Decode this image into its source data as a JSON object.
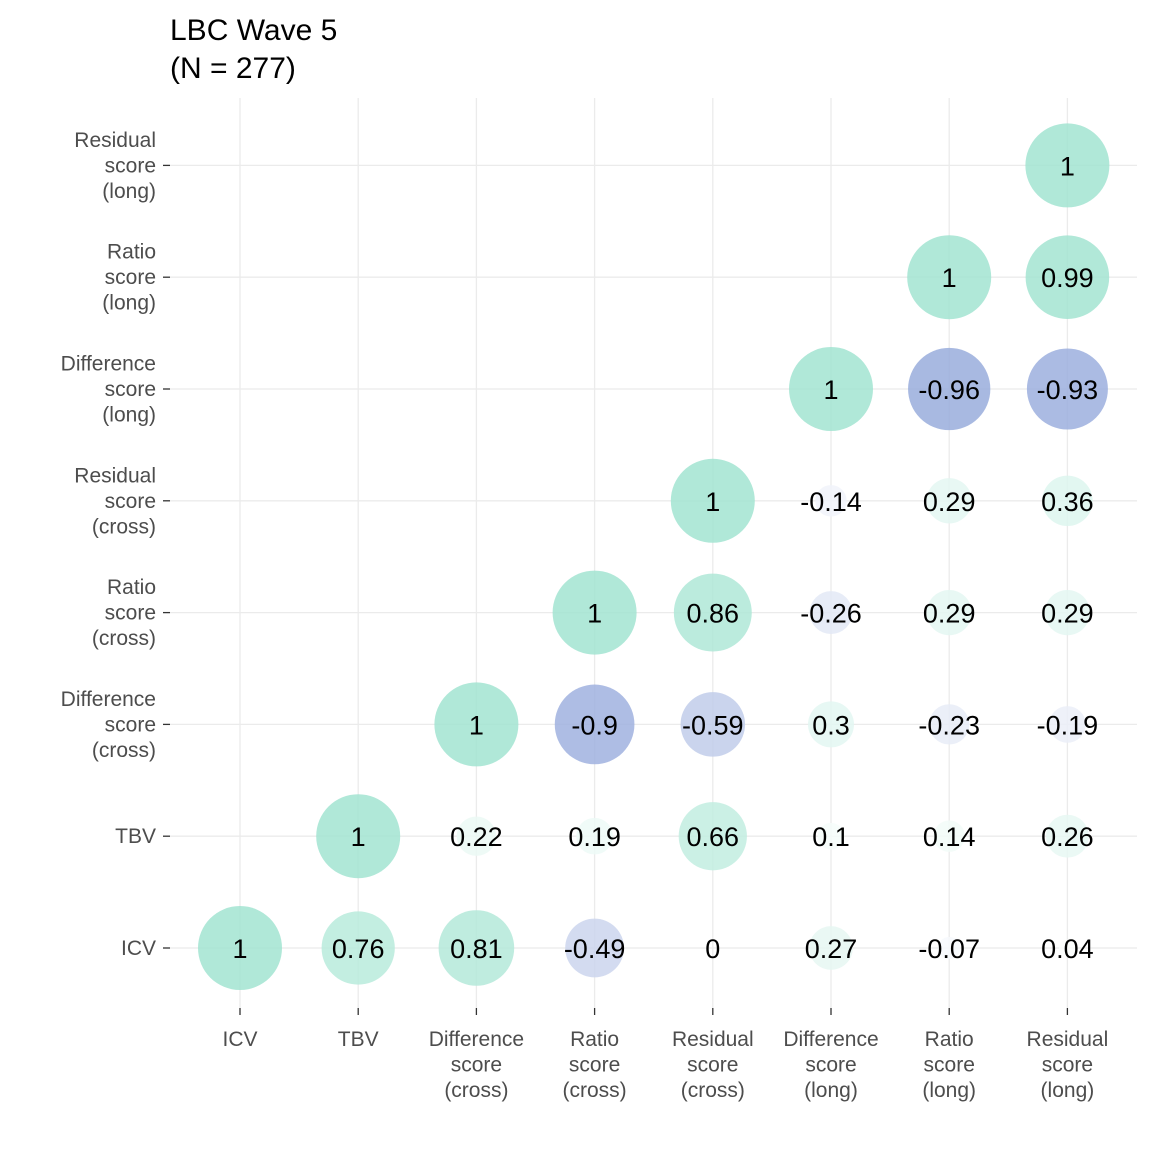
{
  "chart_data": {
    "type": "scatter",
    "title_lines": [
      "LBC Wave 5",
      "(N = 277)"
    ],
    "categories": [
      {
        "label_lines": [
          "ICV"
        ]
      },
      {
        "label_lines": [
          "TBV"
        ]
      },
      {
        "label_lines": [
          "Difference",
          "score",
          "(cross)"
        ]
      },
      {
        "label_lines": [
          "Ratio",
          "score",
          "(cross)"
        ]
      },
      {
        "label_lines": [
          "Residual",
          "score",
          "(cross)"
        ]
      },
      {
        "label_lines": [
          "Difference",
          "score",
          "(long)"
        ]
      },
      {
        "label_lines": [
          "Ratio",
          "score",
          "(long)"
        ]
      },
      {
        "label_lines": [
          "Residual",
          "score",
          "(long)"
        ]
      }
    ],
    "cells": [
      {
        "x": 0,
        "y": 0,
        "value": 1,
        "label": "1"
      },
      {
        "x": 1,
        "y": 0,
        "value": 0.76,
        "label": "0.76"
      },
      {
        "x": 2,
        "y": 0,
        "value": 0.81,
        "label": "0.81"
      },
      {
        "x": 3,
        "y": 0,
        "value": -0.49,
        "label": "-0.49"
      },
      {
        "x": 4,
        "y": 0,
        "value": 0,
        "label": "0"
      },
      {
        "x": 5,
        "y": 0,
        "value": 0.27,
        "label": "0.27"
      },
      {
        "x": 6,
        "y": 0,
        "value": -0.07,
        "label": "-0.07"
      },
      {
        "x": 7,
        "y": 0,
        "value": 0.04,
        "label": "0.04"
      },
      {
        "x": 1,
        "y": 1,
        "value": 1,
        "label": "1"
      },
      {
        "x": 2,
        "y": 1,
        "value": 0.22,
        "label": "0.22"
      },
      {
        "x": 3,
        "y": 1,
        "value": 0.19,
        "label": "0.19"
      },
      {
        "x": 4,
        "y": 1,
        "value": 0.66,
        "label": "0.66"
      },
      {
        "x": 5,
        "y": 1,
        "value": 0.1,
        "label": "0.1"
      },
      {
        "x": 6,
        "y": 1,
        "value": 0.14,
        "label": "0.14"
      },
      {
        "x": 7,
        "y": 1,
        "value": 0.26,
        "label": "0.26"
      },
      {
        "x": 2,
        "y": 2,
        "value": 1,
        "label": "1"
      },
      {
        "x": 3,
        "y": 2,
        "value": -0.9,
        "label": "-0.9"
      },
      {
        "x": 4,
        "y": 2,
        "value": -0.59,
        "label": "-0.59"
      },
      {
        "x": 5,
        "y": 2,
        "value": 0.3,
        "label": "0.3"
      },
      {
        "x": 6,
        "y": 2,
        "value": -0.23,
        "label": "-0.23"
      },
      {
        "x": 7,
        "y": 2,
        "value": -0.19,
        "label": "-0.19"
      },
      {
        "x": 3,
        "y": 3,
        "value": 1,
        "label": "1"
      },
      {
        "x": 4,
        "y": 3,
        "value": 0.86,
        "label": "0.86"
      },
      {
        "x": 5,
        "y": 3,
        "value": -0.26,
        "label": "-0.26"
      },
      {
        "x": 6,
        "y": 3,
        "value": 0.29,
        "label": "0.29"
      },
      {
        "x": 7,
        "y": 3,
        "value": 0.29,
        "label": "0.29"
      },
      {
        "x": 4,
        "y": 4,
        "value": 1,
        "label": "1"
      },
      {
        "x": 5,
        "y": 4,
        "value": -0.14,
        "label": "-0.14"
      },
      {
        "x": 6,
        "y": 4,
        "value": 0.29,
        "label": "0.29"
      },
      {
        "x": 7,
        "y": 4,
        "value": 0.36,
        "label": "0.36"
      },
      {
        "x": 5,
        "y": 5,
        "value": 1,
        "label": "1"
      },
      {
        "x": 6,
        "y": 5,
        "value": -0.96,
        "label": "-0.96"
      },
      {
        "x": 7,
        "y": 5,
        "value": -0.93,
        "label": "-0.93"
      },
      {
        "x": 6,
        "y": 6,
        "value": 1,
        "label": "1"
      },
      {
        "x": 7,
        "y": 6,
        "value": 0.99,
        "label": "0.99"
      },
      {
        "x": 7,
        "y": 7,
        "value": 1,
        "label": "1"
      }
    ],
    "colors": {
      "positive": "#9fe3cf",
      "negative": "#91a6da",
      "grid": "#ebebeb",
      "axis_text": "#4d4d4d",
      "value_text": "#000000"
    },
    "grid": true,
    "legend": "none"
  }
}
